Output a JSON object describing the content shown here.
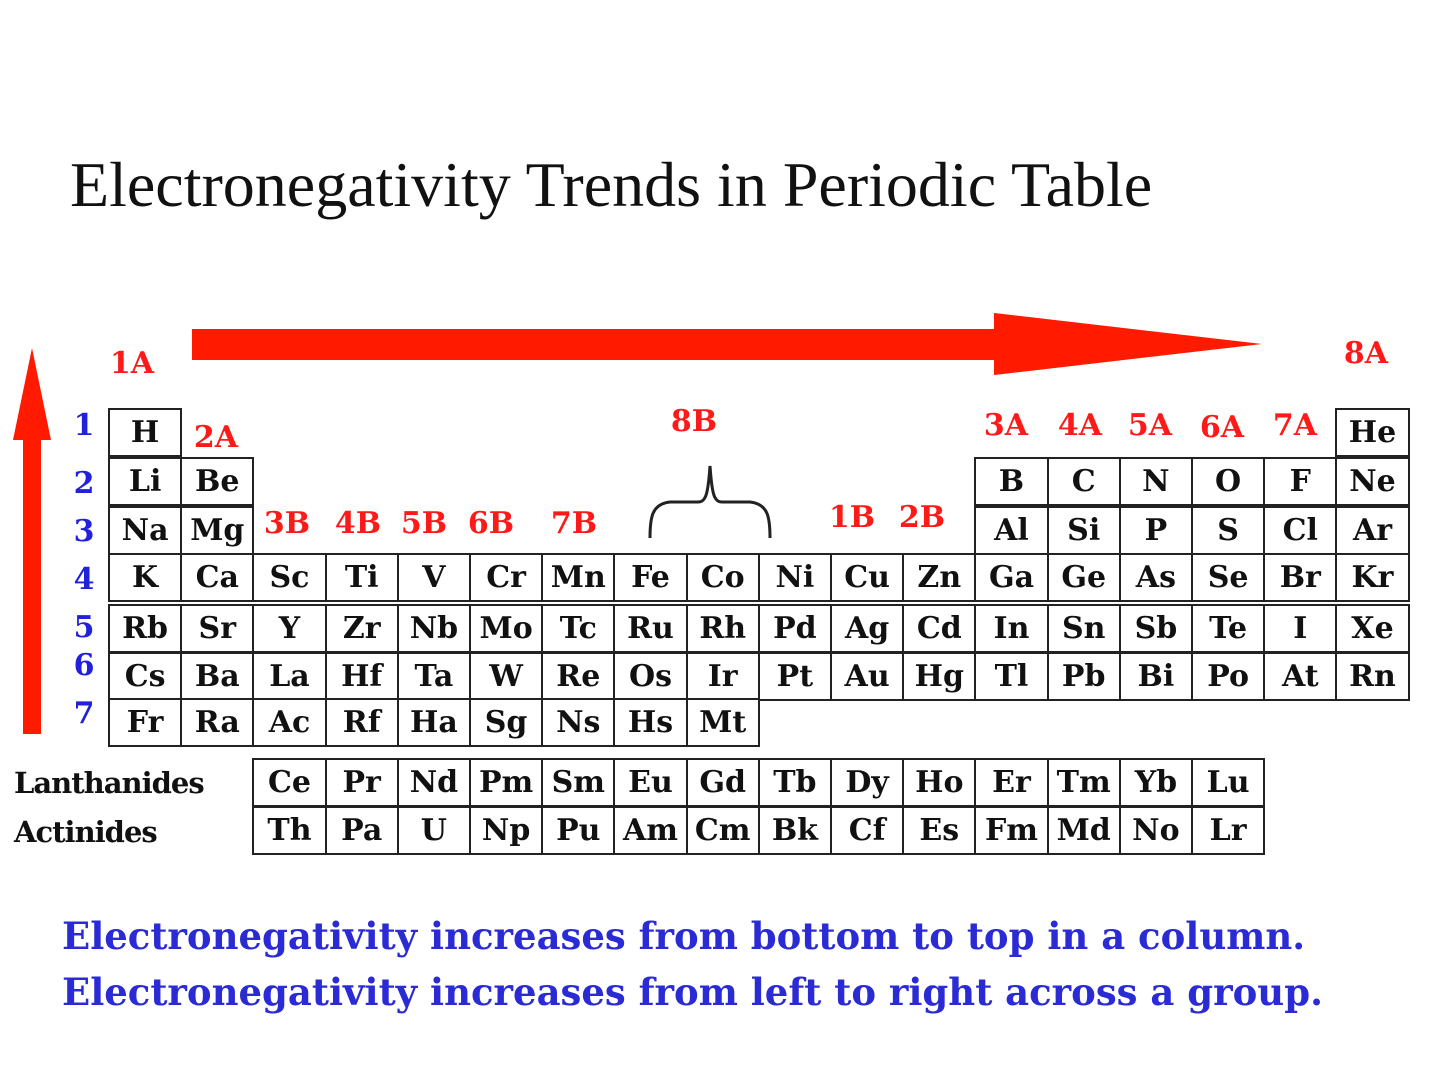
{
  "title": "Electronegativity Trends in Periodic Table",
  "colors": {
    "arrow": "#ff1a00",
    "group_label": "#ff1a1a",
    "period_label": "#2020dd",
    "statement": "#2b2bd6"
  },
  "group_labels": [
    "1A",
    "2A",
    "3B",
    "4B",
    "5B",
    "6B",
    "7B",
    "8B",
    "1B",
    "2B",
    "3A",
    "4A",
    "5A",
    "6A",
    "7A",
    "8A"
  ],
  "period_labels": [
    "1",
    "2",
    "3",
    "4",
    "5",
    "6",
    "7"
  ],
  "periods": [
    [
      "H",
      "",
      "",
      "",
      "",
      "",
      "",
      "",
      "",
      "",
      "",
      "",
      "",
      "",
      "",
      "",
      "",
      "He"
    ],
    [
      "Li",
      "Be",
      "",
      "",
      "",
      "",
      "",
      "",
      "",
      "",
      "",
      "",
      "B",
      "C",
      "N",
      "O",
      "F",
      "Ne"
    ],
    [
      "Na",
      "Mg",
      "",
      "",
      "",
      "",
      "",
      "",
      "",
      "",
      "",
      "",
      "Al",
      "Si",
      "P",
      "S",
      "Cl",
      "Ar"
    ],
    [
      "K",
      "Ca",
      "Sc",
      "Ti",
      "V",
      "Cr",
      "Mn",
      "Fe",
      "Co",
      "Ni",
      "Cu",
      "Zn",
      "Ga",
      "Ge",
      "As",
      "Se",
      "Br",
      "Kr"
    ],
    [
      "Rb",
      "Sr",
      "Y",
      "Zr",
      "Nb",
      "Mo",
      "Tc",
      "Ru",
      "Rh",
      "Pd",
      "Ag",
      "Cd",
      "In",
      "Sn",
      "Sb",
      "Te",
      "I",
      "Xe"
    ],
    [
      "Cs",
      "Ba",
      "La",
      "Hf",
      "Ta",
      "W",
      "Re",
      "Os",
      "Ir",
      "Pt",
      "Au",
      "Hg",
      "Tl",
      "Pb",
      "Bi",
      "Po",
      "At",
      "Rn"
    ],
    [
      "Fr",
      "Ra",
      "Ac",
      "Rf",
      "Ha",
      "Sg",
      "Ns",
      "Hs",
      "Mt",
      "",
      "",
      "",
      "",
      "",
      "",
      "",
      "",
      ""
    ]
  ],
  "f_block": {
    "lanthanides_label": "Lanthanides",
    "actinides_label": "Actinides",
    "lanthanides": [
      "Ce",
      "Pr",
      "Nd",
      "Pm",
      "Sm",
      "Eu",
      "Gd",
      "Tb",
      "Dy",
      "Ho",
      "Er",
      "Tm",
      "Yb",
      "Lu"
    ],
    "actinides": [
      "Th",
      "Pa",
      "U",
      "Np",
      "Pu",
      "Am",
      "Cm",
      "Bk",
      "Cf",
      "Es",
      "Fm",
      "Md",
      "No",
      "Lr"
    ]
  },
  "statements": [
    "Electronegativity increases from bottom to top in a column.",
    "Electronegativity increases from left to right across a group."
  ]
}
